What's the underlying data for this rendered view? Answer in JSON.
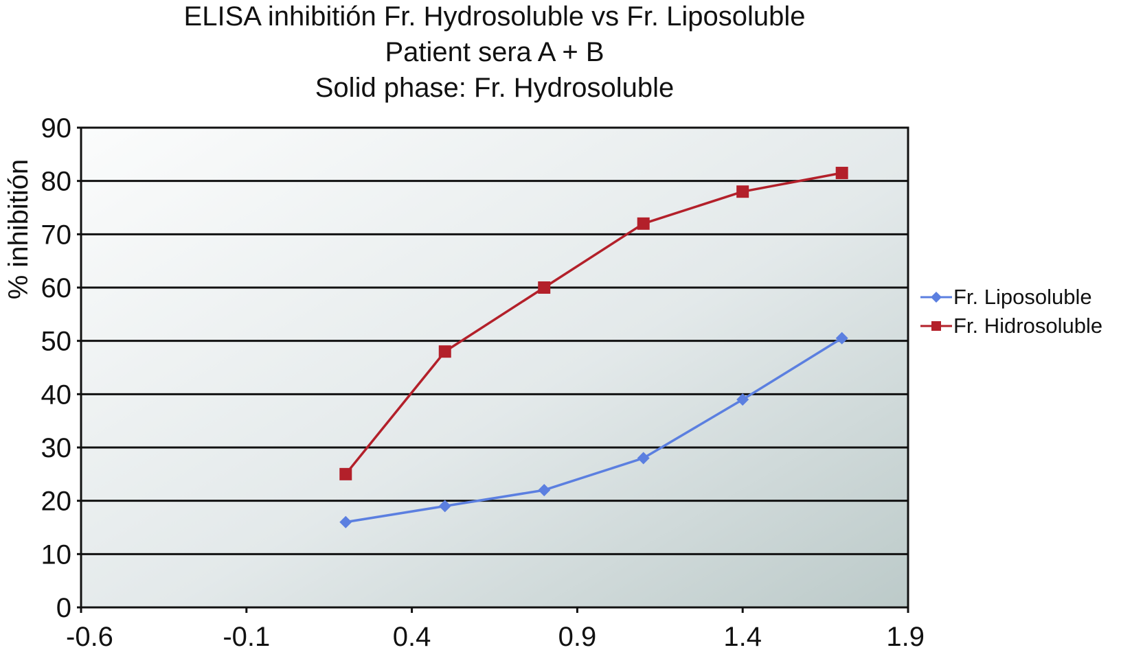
{
  "chart_data": {
    "type": "line",
    "title": [
      "ELISA inhibitión Fr. Hydrosoluble vs Fr. Liposoluble",
      "Patient sera A + B",
      "Solid phase: Fr. Hydrosoluble"
    ],
    "xlabel": "",
    "ylabel": "% inhibitión",
    "xlim": [
      -0.6,
      1.9
    ],
    "ylim": [
      0,
      90
    ],
    "x_ticks": [
      "-0.6",
      "-0.1",
      "0.4",
      "0.9",
      "1.4",
      "1.9"
    ],
    "y_ticks": [
      "0",
      "10",
      "20",
      "30",
      "40",
      "50",
      "60",
      "70",
      "80",
      "90"
    ],
    "grid": "horizontal",
    "legend_position": "right",
    "series": [
      {
        "name": "Fr. Liposoluble",
        "color": "#5b7fe0",
        "marker": "diamond",
        "x": [
          0.2,
          0.5,
          0.8,
          1.1,
          1.4,
          1.7
        ],
        "y": [
          16,
          19,
          22,
          28,
          39,
          50.5
        ]
      },
      {
        "name": "Fr. Hidrosoluble",
        "color": "#b3202a",
        "marker": "square",
        "x": [
          0.2,
          0.5,
          0.8,
          1.1,
          1.4,
          1.7
        ],
        "y": [
          25,
          48,
          60,
          72,
          78,
          81.5
        ]
      }
    ]
  }
}
